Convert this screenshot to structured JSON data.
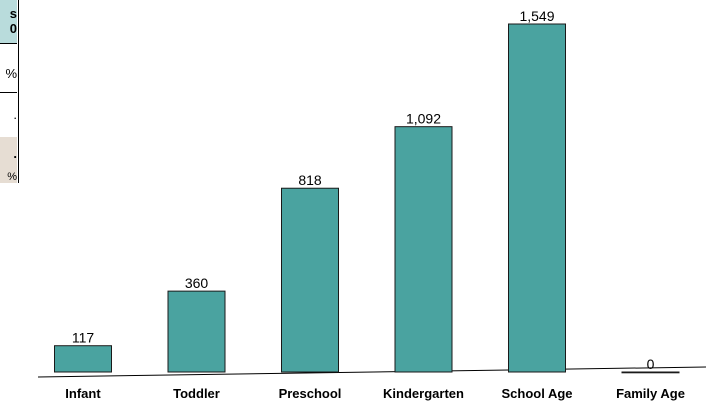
{
  "colors": {
    "bar_fill": "#4aa3a0",
    "bar_stroke": "#1a1a1a",
    "table_header_bg": "#b9dcdc",
    "table_shaded_bg": "#e6ddd3"
  },
  "side_table": {
    "header": [
      "s",
      "0"
    ],
    "rows": [
      "%",
      ".",
      ".",
      "%"
    ]
  },
  "chart_data": {
    "type": "bar",
    "categories": [
      "Infant",
      "Toddler",
      "Preschool",
      "Kindergarten",
      "School Age",
      "Family Age"
    ],
    "values": [
      117,
      360,
      818,
      1092,
      1549,
      0
    ],
    "data_labels": [
      "117",
      "360",
      "818",
      "1,092",
      "1,549",
      "0"
    ],
    "title": "",
    "xlabel": "",
    "ylabel": "",
    "ylim": [
      0,
      1549
    ],
    "grid": false,
    "legend": "none"
  }
}
